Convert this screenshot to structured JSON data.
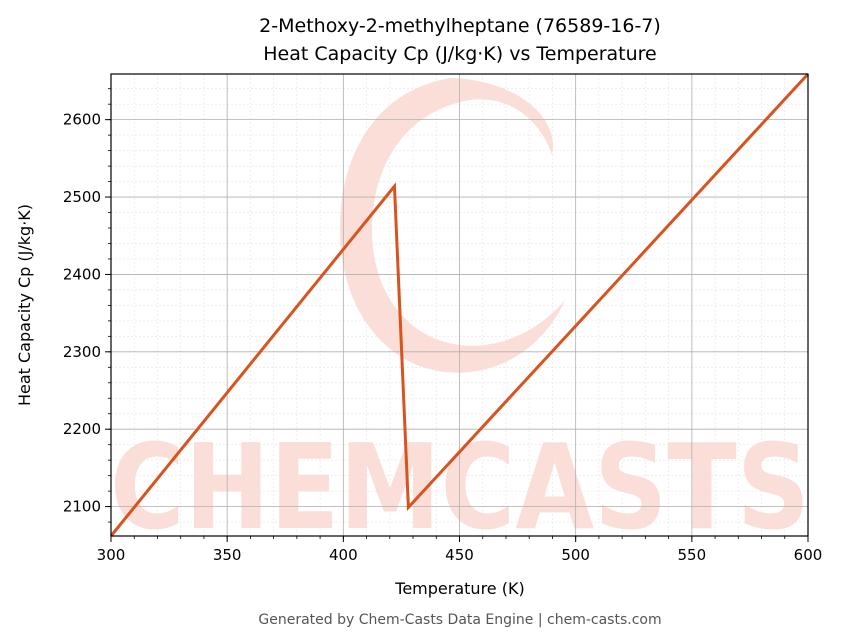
{
  "chart_data": {
    "type": "line",
    "title_line1": "2-Methoxy-2-methylheptane (76589-16-7)",
    "title_line2": "Heat Capacity Cp (J/kg·K) vs Temperature",
    "xlabel": "Temperature (K)",
    "ylabel": "Heat Capacity Cp (J/kg·K)",
    "xlim": [
      300,
      600
    ],
    "ylim": [
      2062,
      2659
    ],
    "x_ticks": [
      300,
      350,
      400,
      450,
      500,
      550,
      600
    ],
    "y_ticks": [
      2100,
      2200,
      2300,
      2400,
      2500,
      2600
    ],
    "grid": true,
    "series": [
      {
        "color": "#d9531e",
        "x": [
          300,
          422,
          428,
          600
        ],
        "y": [
          2062,
          2514,
          2099,
          2659
        ]
      }
    ]
  },
  "watermark": {
    "text": "CHEMCASTS",
    "color": "#fbd3cb"
  },
  "footer": "Generated by Chem-Casts Data Engine | chem-casts.com"
}
